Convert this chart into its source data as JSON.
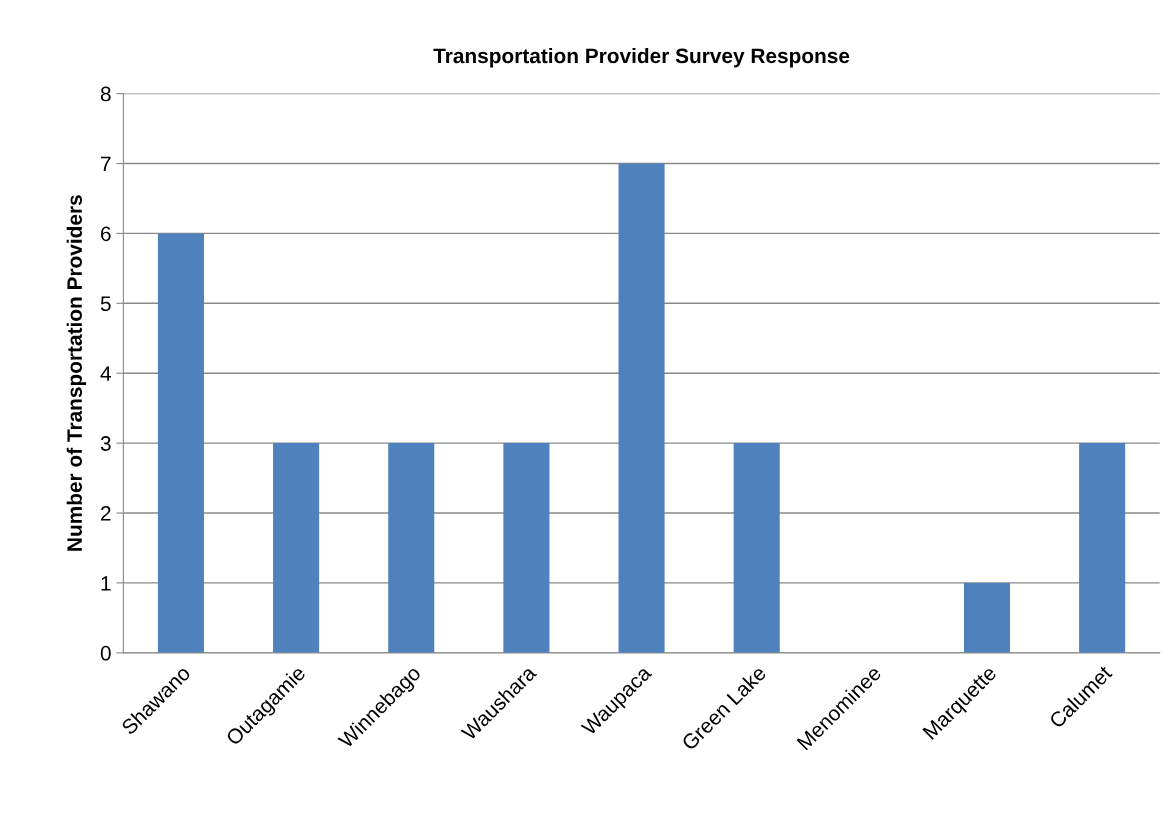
{
  "chart_data": {
    "type": "bar",
    "title": "Transportation Provider Survey Response",
    "ylabel": "Number of Transportation Providers",
    "categories": [
      "Shawano",
      "Outagamie",
      "Winnebago",
      "Waushara",
      "Waupaca",
      "Green Lake",
      "Menominee",
      "Marquette",
      "Calumet"
    ],
    "values": [
      6,
      3,
      3,
      3,
      7,
      3,
      0,
      1,
      3
    ],
    "color": "#4f81bd",
    "ylim": [
      0,
      8
    ],
    "yticks": [
      0,
      1,
      2,
      3,
      4,
      5,
      6,
      7,
      8
    ],
    "grid": "y"
  }
}
